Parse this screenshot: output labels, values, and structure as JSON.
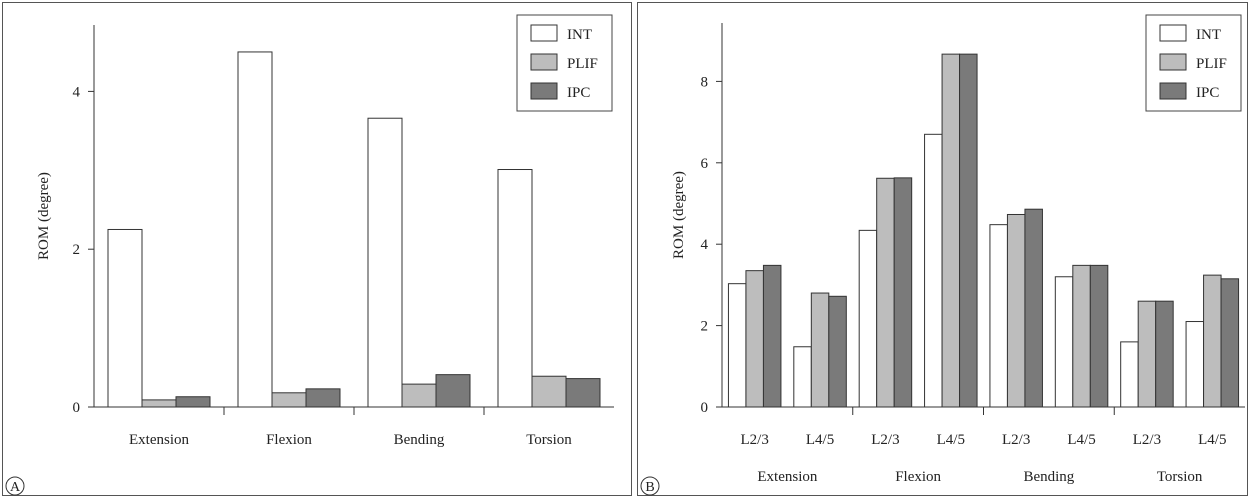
{
  "chart_data": [
    {
      "type": "bar",
      "panel_label": "A",
      "ylabel": "ROM (degree)",
      "xlabel": "",
      "ylim": [
        0,
        4.8
      ],
      "yticks": [
        0,
        2,
        4
      ],
      "categories": [
        "Extension",
        "Flexion",
        "Bending",
        "Torsion"
      ],
      "series": [
        {
          "name": "INT",
          "color": "#ffffff",
          "values": [
            2.25,
            4.5,
            3.66,
            3.01
          ]
        },
        {
          "name": "PLIF",
          "color": "#bdbdbd",
          "values": [
            0.09,
            0.18,
            0.29,
            0.39
          ]
        },
        {
          "name": "IPC",
          "color": "#7a7a7a",
          "values": [
            0.13,
            0.23,
            0.41,
            0.36
          ]
        }
      ],
      "legend": "top-right",
      "grid": false
    },
    {
      "type": "bar",
      "panel_label": "B",
      "ylabel": "ROM (degree)",
      "xlabel": "",
      "ylim": [
        0,
        9.4
      ],
      "yticks": [
        0,
        2,
        4,
        6,
        8
      ],
      "groups": [
        "Extension",
        "Flexion",
        "Bending",
        "Torsion"
      ],
      "subcategories": [
        "L2/3",
        "L4/5"
      ],
      "series": [
        {
          "name": "INT",
          "color": "#ffffff",
          "values": [
            3.03,
            1.48,
            4.34,
            6.7,
            4.48,
            3.2,
            1.6,
            2.1
          ]
        },
        {
          "name": "PLIF",
          "color": "#bdbdbd",
          "values": [
            3.35,
            2.8,
            5.62,
            8.67,
            4.73,
            3.48,
            2.6,
            3.24
          ]
        },
        {
          "name": "IPC",
          "color": "#7a7a7a",
          "values": [
            3.48,
            2.72,
            5.63,
            8.67,
            4.86,
            3.48,
            2.6,
            3.15
          ]
        }
      ],
      "legend": "top-right",
      "grid": false
    }
  ]
}
